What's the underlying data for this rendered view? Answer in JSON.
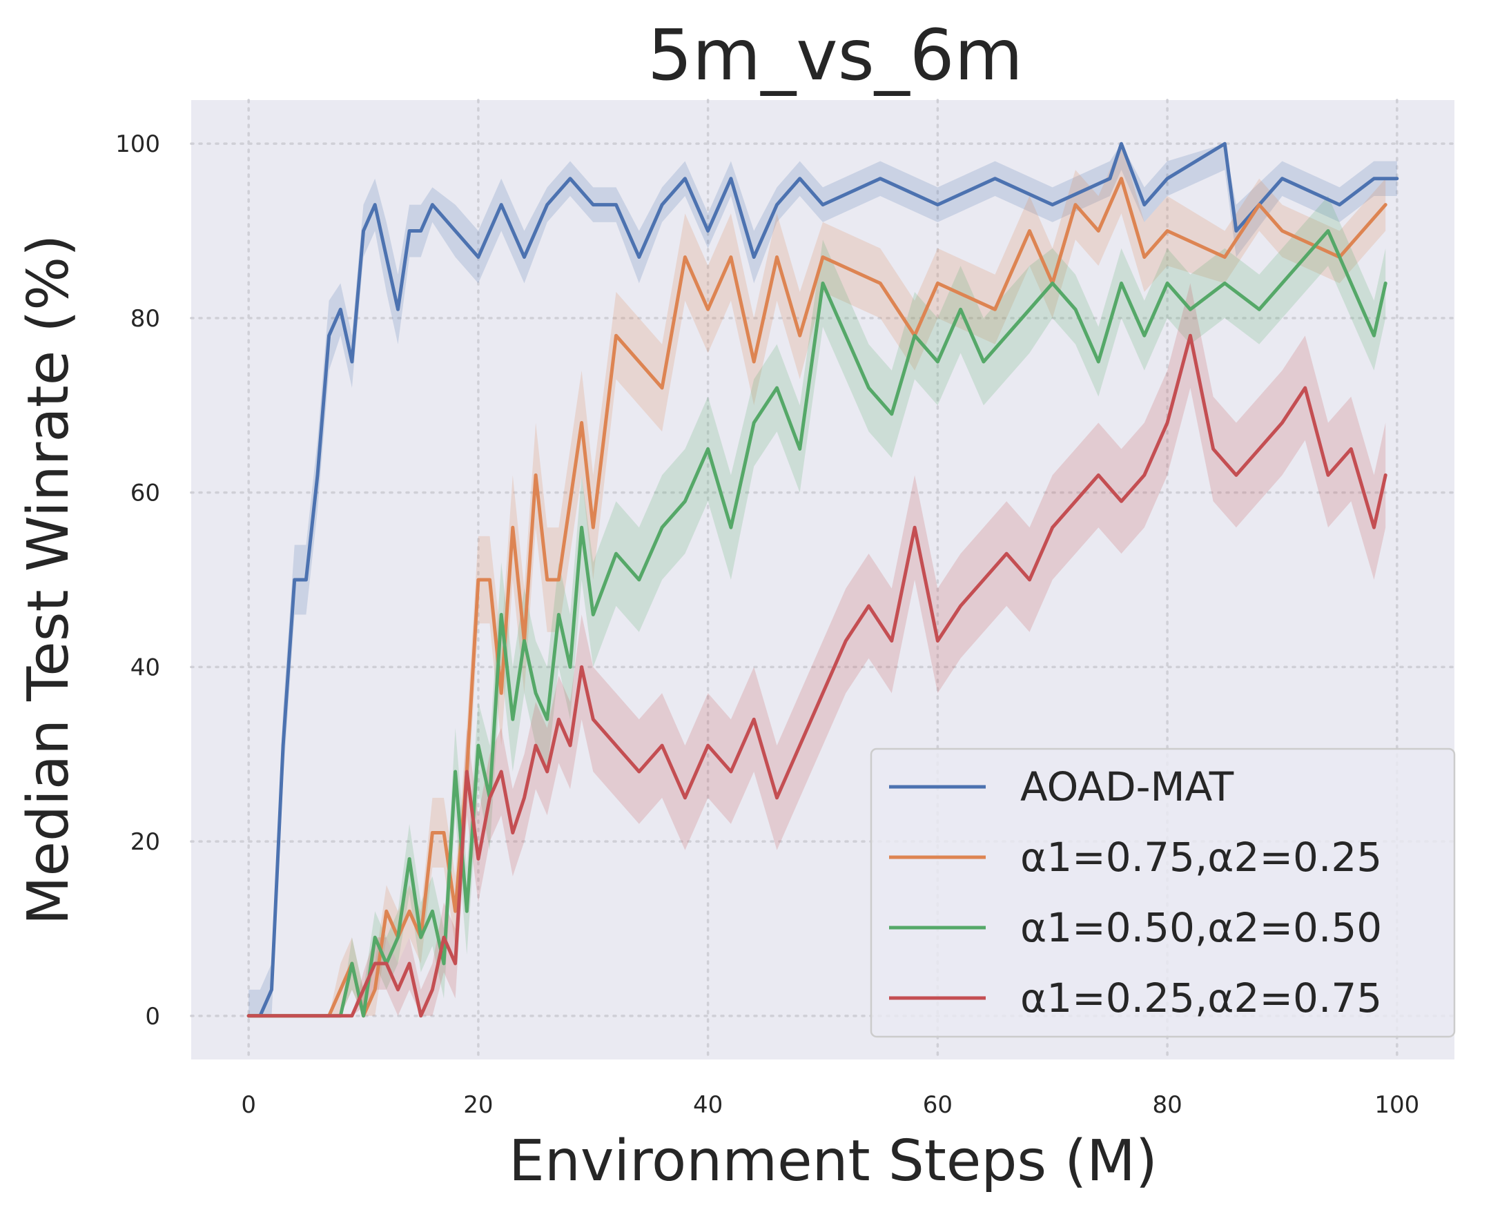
{
  "chart_data": {
    "type": "line",
    "title": "5m_vs_6m",
    "xlabel": "Environment Steps (M)",
    "ylabel": "Median Test Winrate (%)",
    "xlim": [
      -5,
      105
    ],
    "ylim": [
      -5,
      105
    ],
    "xticks": [
      0,
      20,
      40,
      60,
      80,
      100
    ],
    "yticks": [
      0,
      20,
      40,
      60,
      80,
      100
    ],
    "grid": true,
    "legend_position": "bottom-right",
    "series": [
      {
        "name": "AOAD-MAT",
        "color": "#4c72b0",
        "x": [
          0,
          1,
          2,
          3,
          4,
          5,
          6,
          7,
          8,
          9,
          10,
          11,
          12,
          13,
          14,
          15,
          16,
          18,
          20,
          22,
          24,
          26,
          28,
          30,
          32,
          34,
          36,
          38,
          40,
          42,
          44,
          46,
          48,
          50,
          55,
          60,
          65,
          70,
          75,
          76,
          78,
          80,
          85,
          86,
          90,
          95,
          98,
          100
        ],
        "y": [
          0,
          0,
          3,
          31,
          50,
          50,
          62,
          78,
          81,
          75,
          90,
          93,
          87,
          81,
          90,
          90,
          93,
          90,
          87,
          93,
          87,
          93,
          96,
          93,
          93,
          87,
          93,
          96,
          90,
          96,
          87,
          93,
          96,
          93,
          96,
          93,
          96,
          93,
          96,
          100,
          93,
          96,
          100,
          90,
          96,
          93,
          96,
          96
        ],
        "band": [
          3,
          3,
          3,
          4,
          4,
          4,
          4,
          4,
          3,
          3,
          3,
          3,
          4,
          4,
          3,
          3,
          2,
          3,
          3,
          3,
          3,
          2,
          2,
          2,
          2,
          3,
          2,
          2,
          2,
          2,
          3,
          2,
          2,
          2,
          2,
          2,
          2,
          2,
          2,
          3,
          2,
          2,
          3,
          3,
          2,
          2,
          2,
          2
        ]
      },
      {
        "name": "α1=0.75,α2=0.25",
        "color": "#dd8452",
        "x": [
          0,
          7,
          8,
          9,
          10,
          11,
          12,
          13,
          14,
          15,
          16,
          17,
          18,
          19,
          20,
          21,
          22,
          23,
          24,
          25,
          26,
          27,
          28,
          29,
          30,
          32,
          34,
          36,
          38,
          40,
          42,
          44,
          46,
          48,
          50,
          55,
          58,
          60,
          65,
          68,
          70,
          72,
          74,
          76,
          78,
          80,
          85,
          88,
          90,
          95,
          99
        ],
        "y": [
          0,
          0,
          3,
          6,
          0,
          3,
          12,
          9,
          12,
          9,
          21,
          21,
          12,
          28,
          50,
          50,
          37,
          56,
          43,
          62,
          50,
          50,
          59,
          68,
          56,
          78,
          75,
          72,
          87,
          81,
          87,
          75,
          87,
          78,
          87,
          84,
          78,
          84,
          81,
          90,
          84,
          93,
          90,
          96,
          87,
          90,
          87,
          93,
          90,
          87,
          93
        ],
        "band": [
          0,
          0,
          3,
          3,
          3,
          3,
          3,
          3,
          3,
          3,
          4,
          4,
          4,
          5,
          5,
          5,
          6,
          6,
          6,
          6,
          6,
          6,
          6,
          6,
          6,
          5,
          5,
          5,
          5,
          5,
          5,
          5,
          5,
          5,
          4,
          4,
          4,
          4,
          4,
          4,
          4,
          4,
          4,
          4,
          4,
          4,
          3,
          3,
          3,
          3,
          3
        ]
      },
      {
        "name": "α1=0.50,α2=0.50",
        "color": "#55a868",
        "x": [
          0,
          8,
          9,
          10,
          11,
          12,
          13,
          14,
          15,
          16,
          17,
          18,
          19,
          20,
          21,
          22,
          23,
          24,
          25,
          26,
          27,
          28,
          29,
          30,
          32,
          34,
          36,
          38,
          40,
          42,
          44,
          46,
          48,
          50,
          52,
          54,
          56,
          58,
          60,
          62,
          64,
          66,
          68,
          70,
          72,
          74,
          76,
          78,
          80,
          82,
          85,
          88,
          90,
          92,
          94,
          96,
          98,
          99
        ],
        "y": [
          0,
          0,
          6,
          0,
          9,
          6,
          9,
          18,
          9,
          12,
          6,
          28,
          12,
          31,
          25,
          46,
          34,
          43,
          37,
          34,
          46,
          40,
          56,
          46,
          53,
          50,
          56,
          59,
          65,
          56,
          68,
          72,
          65,
          84,
          78,
          72,
          69,
          78,
          75,
          81,
          75,
          78,
          81,
          84,
          81,
          75,
          84,
          78,
          84,
          81,
          84,
          81,
          84,
          87,
          90,
          84,
          78,
          84
        ],
        "band": [
          0,
          0,
          3,
          3,
          3,
          3,
          3,
          4,
          4,
          4,
          4,
          5,
          5,
          5,
          6,
          6,
          6,
          6,
          6,
          6,
          6,
          6,
          6,
          6,
          6,
          6,
          6,
          6,
          6,
          6,
          5,
          5,
          5,
          5,
          5,
          5,
          5,
          5,
          5,
          5,
          5,
          5,
          5,
          4,
          4,
          4,
          4,
          4,
          4,
          4,
          4,
          4,
          4,
          4,
          4,
          4,
          4,
          4
        ]
      },
      {
        "name": "α1=0.25,α2=0.75",
        "color": "#c44e52",
        "x": [
          0,
          9,
          10,
          11,
          12,
          13,
          14,
          15,
          16,
          17,
          18,
          19,
          20,
          21,
          22,
          23,
          24,
          25,
          26,
          27,
          28,
          29,
          30,
          32,
          34,
          36,
          38,
          40,
          42,
          44,
          46,
          48,
          50,
          52,
          54,
          56,
          58,
          60,
          62,
          64,
          66,
          68,
          70,
          72,
          74,
          76,
          78,
          80,
          82,
          84,
          86,
          88,
          90,
          92,
          94,
          96,
          98,
          99
        ],
        "y": [
          0,
          0,
          3,
          6,
          6,
          3,
          6,
          0,
          3,
          9,
          6,
          28,
          18,
          25,
          28,
          21,
          25,
          31,
          28,
          34,
          31,
          40,
          34,
          31,
          28,
          31,
          25,
          31,
          28,
          34,
          25,
          31,
          37,
          43,
          47,
          43,
          56,
          43,
          47,
          50,
          53,
          50,
          56,
          59,
          62,
          59,
          62,
          68,
          78,
          65,
          62,
          65,
          68,
          72,
          62,
          65,
          56,
          62
        ],
        "band": [
          0,
          0,
          2,
          3,
          3,
          3,
          3,
          3,
          3,
          4,
          4,
          5,
          5,
          5,
          5,
          5,
          5,
          5,
          5,
          5,
          5,
          6,
          6,
          6,
          6,
          6,
          6,
          6,
          6,
          6,
          6,
          6,
          6,
          6,
          6,
          6,
          6,
          6,
          6,
          6,
          6,
          6,
          6,
          6,
          6,
          6,
          6,
          6,
          6,
          6,
          6,
          6,
          6,
          6,
          6,
          6,
          6,
          6
        ]
      }
    ]
  }
}
